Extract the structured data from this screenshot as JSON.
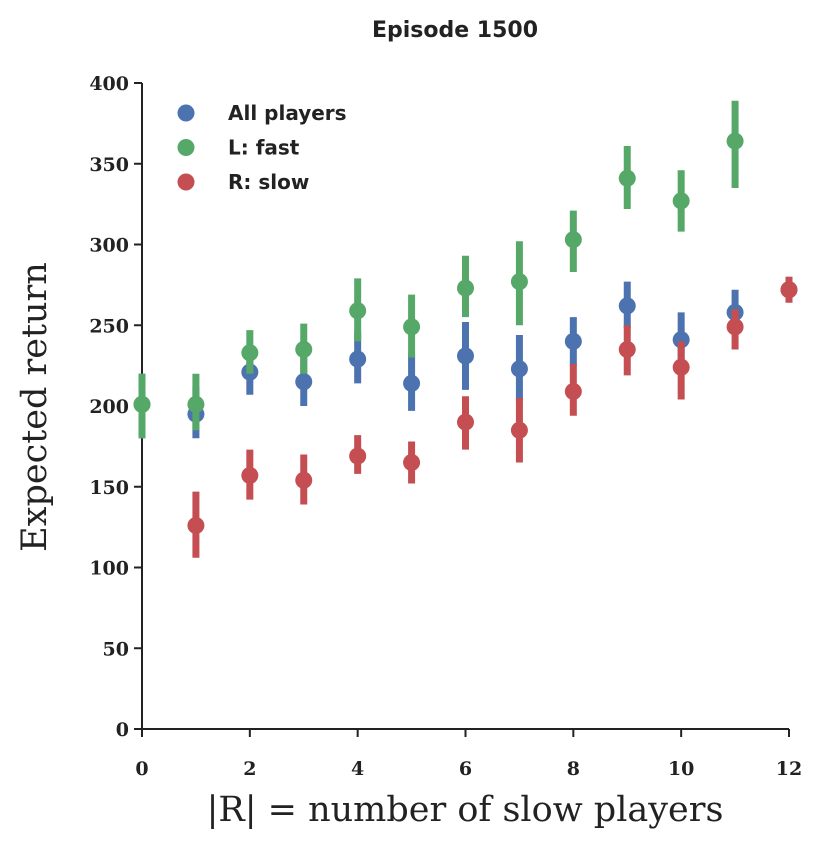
{
  "chart_data": {
    "type": "scatter",
    "title": "Episode 1500",
    "xlabel": "|R| = number of slow players",
    "ylabel": "Expected return",
    "xlim": [
      0,
      12
    ],
    "ylim": [
      0,
      400
    ],
    "xticks": [
      0,
      2,
      4,
      6,
      8,
      10,
      12
    ],
    "xtick_labels": [
      "0",
      "2",
      "4",
      "6",
      "8",
      "10",
      "12"
    ],
    "yticks": [
      0,
      50,
      100,
      150,
      200,
      250,
      300,
      350,
      400
    ],
    "ytick_labels": [
      "0",
      "50",
      "100",
      "150",
      "200",
      "250",
      "300",
      "350",
      "400"
    ],
    "grid": false,
    "legend_position": "top-left",
    "series": [
      {
        "name": "All players",
        "color": "#4c72b0",
        "x": [
          0,
          1,
          2,
          3,
          4,
          5,
          6,
          7,
          8,
          9,
          10,
          11,
          12
        ],
        "y": [
          201,
          195,
          221,
          215,
          229,
          214,
          231,
          223,
          240,
          262,
          241,
          258,
          272
        ],
        "yerr_low": [
          180,
          180,
          207,
          200,
          214,
          197,
          210,
          203,
          225,
          248,
          225,
          246,
          264
        ],
        "yerr_high": [
          220,
          212,
          235,
          232,
          246,
          232,
          252,
          244,
          255,
          277,
          258,
          272,
          280
        ]
      },
      {
        "name": "L: fast",
        "color": "#55a868",
        "x": [
          0,
          1,
          2,
          3,
          4,
          5,
          6,
          7,
          8,
          9,
          10,
          11
        ],
        "y": [
          201,
          201,
          233,
          235,
          259,
          249,
          273,
          277,
          303,
          341,
          327,
          364
        ],
        "yerr_low": [
          180,
          185,
          220,
          220,
          240,
          230,
          255,
          250,
          283,
          322,
          308,
          335
        ],
        "yerr_high": [
          220,
          220,
          247,
          251,
          279,
          269,
          293,
          302,
          321,
          361,
          346,
          389
        ]
      },
      {
        "name": "R: slow",
        "color": "#c44e52",
        "x": [
          1,
          2,
          3,
          4,
          5,
          6,
          7,
          8,
          9,
          10,
          11,
          12
        ],
        "y": [
          126,
          157,
          154,
          169,
          165,
          190,
          185,
          209,
          235,
          224,
          249,
          272
        ],
        "yerr_low": [
          106,
          142,
          139,
          158,
          152,
          173,
          165,
          194,
          219,
          204,
          235,
          264
        ],
        "yerr_high": [
          147,
          173,
          170,
          182,
          178,
          206,
          205,
          226,
          250,
          240,
          260,
          280
        ]
      }
    ]
  }
}
